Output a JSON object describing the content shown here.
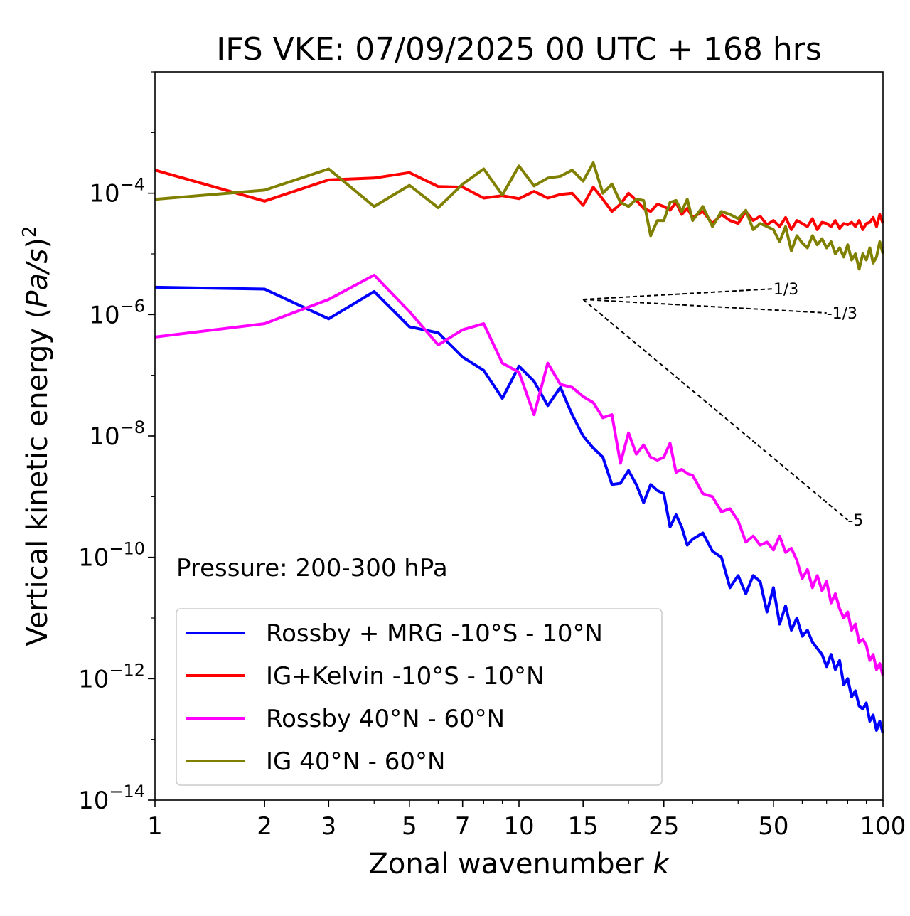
{
  "chart_data": {
    "type": "line",
    "title": "IFS VKE: 07/09/2025 00 UTC + 168 hrs",
    "xlabel": "Zonal wavenumber",
    "xlabel_var": "k",
    "ylabel_prefix": "Vertical kinetic energy (",
    "ylabel_var": "Pa/s",
    "ylabel_suffix": ")",
    "ylabel_exp": "2",
    "xscale": "log",
    "yscale": "log",
    "xlim": [
      1,
      100
    ],
    "ylim": [
      1e-14,
      0.01
    ],
    "xticks": [
      1,
      2,
      3,
      5,
      7,
      10,
      15,
      25,
      50,
      100
    ],
    "xtick_labels": [
      "1",
      "2",
      "3",
      "5",
      "7",
      "10",
      "15",
      "25",
      "50",
      "100"
    ],
    "yticks": [
      {
        "base": "10",
        "exp": "−4",
        "value": -4
      },
      {
        "base": "10",
        "exp": "−6",
        "value": -6
      },
      {
        "base": "10",
        "exp": "−8",
        "value": -8
      },
      {
        "base": "10",
        "exp": "−10",
        "value": -10
      },
      {
        "base": "10",
        "exp": "−12",
        "value": -12
      },
      {
        "base": "10",
        "exp": "−14",
        "value": -14
      }
    ],
    "annotation": "Pressure: 200-300 hPa",
    "legend_position": "lower-left",
    "series": [
      {
        "name": "Rossby + MRG -10°S - 10°N",
        "color": "#0000ff",
        "x": [
          1,
          2,
          3,
          4,
          5,
          6,
          7,
          8,
          9,
          10,
          11,
          12,
          13,
          14,
          15,
          16,
          17,
          18,
          19,
          20,
          21,
          22,
          23,
          24,
          25,
          26,
          27,
          28,
          29,
          30,
          32,
          34,
          36,
          38,
          40,
          42,
          44,
          46,
          48,
          50,
          52,
          54,
          56,
          58,
          60,
          62,
          64,
          66,
          68,
          70,
          72,
          74,
          76,
          78,
          80,
          82,
          84,
          86,
          88,
          90,
          92,
          94,
          96,
          98,
          100
        ],
        "log10_y": [
          -5.55,
          -5.58,
          -6.07,
          -5.62,
          -6.2,
          -6.3,
          -6.7,
          -6.92,
          -7.38,
          -6.85,
          -7.1,
          -7.5,
          -7.2,
          -7.65,
          -8.0,
          -8.2,
          -8.35,
          -8.8,
          -8.78,
          -8.57,
          -8.8,
          -9.1,
          -8.8,
          -8.9,
          -8.95,
          -9.5,
          -9.3,
          -9.5,
          -9.8,
          -9.7,
          -9.6,
          -9.9,
          -10.0,
          -10.5,
          -10.3,
          -10.6,
          -10.3,
          -10.4,
          -10.9,
          -10.5,
          -11.1,
          -10.8,
          -11.2,
          -11.0,
          -11.3,
          -11.2,
          -11.4,
          -11.5,
          -11.6,
          -11.8,
          -11.6,
          -11.85,
          -11.7,
          -12.1,
          -12.0,
          -12.3,
          -12.2,
          -12.45,
          -12.5,
          -12.4,
          -12.7,
          -12.6,
          -12.85,
          -12.7,
          -12.9
        ]
      },
      {
        "name": "IG+Kelvin -10°S - 10°N",
        "color": "#ff0000",
        "x": [
          1,
          2,
          3,
          4,
          5,
          6,
          7,
          8,
          9,
          10,
          11,
          12,
          13,
          14,
          15,
          16,
          17,
          18,
          19,
          20,
          21,
          22,
          23,
          24,
          25,
          26,
          27,
          28,
          29,
          30,
          32,
          34,
          36,
          38,
          40,
          42,
          44,
          46,
          48,
          50,
          52,
          54,
          56,
          58,
          60,
          62,
          64,
          66,
          68,
          70,
          72,
          74,
          76,
          78,
          80,
          82,
          84,
          86,
          88,
          90,
          92,
          94,
          96,
          98,
          100
        ],
        "log10_y": [
          -3.62,
          -4.13,
          -3.78,
          -3.75,
          -3.66,
          -3.89,
          -3.9,
          -4.08,
          -4.04,
          -4.09,
          -3.97,
          -4.08,
          -4.02,
          -4.0,
          -4.2,
          -3.9,
          -4.1,
          -4.3,
          -4.18,
          -4.0,
          -4.12,
          -4.25,
          -4.3,
          -4.18,
          -4.22,
          -4.28,
          -4.15,
          -4.35,
          -4.25,
          -4.4,
          -4.3,
          -4.5,
          -4.35,
          -4.45,
          -4.5,
          -4.3,
          -4.45,
          -4.38,
          -4.52,
          -4.45,
          -4.55,
          -4.4,
          -4.6,
          -4.45,
          -4.5,
          -4.55,
          -4.42,
          -4.6,
          -4.48,
          -4.5,
          -4.55,
          -4.45,
          -4.58,
          -4.5,
          -4.52,
          -4.48,
          -4.55,
          -4.45,
          -4.6,
          -4.5,
          -4.48,
          -4.4,
          -4.55,
          -4.35,
          -4.5
        ]
      },
      {
        "name": "Rossby 40°N - 60°N",
        "color": "#ff00ff",
        "x": [
          1,
          2,
          3,
          4,
          5,
          6,
          7,
          8,
          9,
          10,
          11,
          12,
          13,
          14,
          15,
          16,
          17,
          18,
          19,
          20,
          21,
          22,
          23,
          24,
          25,
          26,
          27,
          28,
          29,
          30,
          32,
          34,
          36,
          38,
          40,
          42,
          44,
          46,
          48,
          50,
          52,
          54,
          56,
          58,
          60,
          62,
          64,
          66,
          68,
          70,
          72,
          74,
          76,
          78,
          80,
          82,
          84,
          86,
          88,
          90,
          92,
          94,
          96,
          98,
          100
        ],
        "log10_y": [
          -6.37,
          -6.15,
          -5.75,
          -5.35,
          -5.95,
          -6.5,
          -6.25,
          -6.15,
          -6.8,
          -6.95,
          -7.65,
          -6.8,
          -7.15,
          -7.2,
          -7.35,
          -7.45,
          -7.7,
          -7.65,
          -8.45,
          -7.95,
          -8.3,
          -8.15,
          -8.35,
          -8.4,
          -8.35,
          -8.12,
          -8.6,
          -8.55,
          -8.62,
          -8.65,
          -8.95,
          -9.0,
          -9.25,
          -9.2,
          -9.4,
          -9.75,
          -9.65,
          -9.8,
          -9.75,
          -9.88,
          -9.65,
          -9.92,
          -9.85,
          -10.05,
          -10.35,
          -10.2,
          -10.5,
          -10.3,
          -10.55,
          -10.4,
          -10.75,
          -10.6,
          -10.85,
          -11.0,
          -10.9,
          -11.2,
          -11.1,
          -11.4,
          -11.35,
          -11.45,
          -11.7,
          -11.6,
          -11.85,
          -11.75,
          -11.95
        ]
      },
      {
        "name": "IG 40°N - 60°N",
        "color": "#808000",
        "x": [
          1,
          2,
          3,
          4,
          5,
          6,
          7,
          8,
          9,
          10,
          11,
          12,
          13,
          14,
          15,
          16,
          17,
          18,
          19,
          20,
          21,
          22,
          23,
          24,
          25,
          26,
          27,
          28,
          29,
          30,
          32,
          34,
          36,
          38,
          40,
          42,
          44,
          46,
          48,
          50,
          52,
          54,
          56,
          58,
          60,
          62,
          64,
          66,
          68,
          70,
          72,
          74,
          76,
          78,
          80,
          82,
          84,
          86,
          88,
          90,
          92,
          94,
          96,
          98,
          100
        ],
        "log10_y": [
          -4.1,
          -3.95,
          -3.6,
          -4.22,
          -3.87,
          -4.24,
          -3.85,
          -3.6,
          -4.03,
          -3.55,
          -3.88,
          -3.75,
          -3.72,
          -3.62,
          -3.8,
          -3.5,
          -4.0,
          -3.85,
          -4.15,
          -4.22,
          -4.1,
          -4.12,
          -4.7,
          -4.45,
          -4.45,
          -4.15,
          -4.12,
          -4.3,
          -4.1,
          -4.45,
          -4.22,
          -4.55,
          -4.3,
          -4.35,
          -4.42,
          -4.28,
          -4.6,
          -4.5,
          -4.55,
          -4.6,
          -4.8,
          -4.55,
          -4.95,
          -4.7,
          -4.82,
          -4.9,
          -4.7,
          -4.85,
          -4.75,
          -4.9,
          -4.8,
          -5.0,
          -4.9,
          -5.05,
          -4.85,
          -5.1,
          -5.0,
          -5.25,
          -5.0,
          -5.1,
          -4.9,
          -5.15,
          -5.05,
          -4.8,
          -5.0
        ]
      }
    ],
    "reference_lines": [
      {
        "label": "1/3",
        "slope": 0.3333,
        "x0": 15,
        "log10_y0": -5.75,
        "x1": 50
      },
      {
        "label": "-1/3",
        "slope": -0.3333,
        "x0": 15,
        "log10_y0": -5.75,
        "x1": 70
      },
      {
        "label": "-5",
        "slope": -5,
        "x0": 15,
        "log10_y0": -5.75,
        "x1": 80
      }
    ]
  }
}
